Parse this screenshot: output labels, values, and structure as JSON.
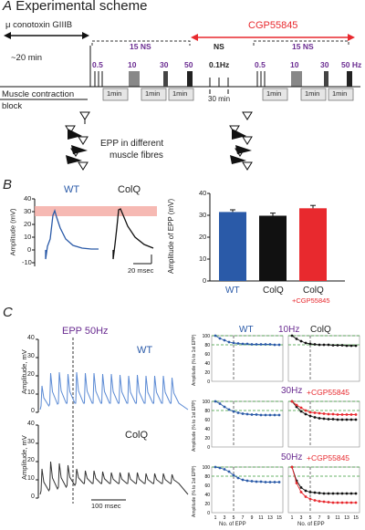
{
  "panelA": {
    "letter": "A",
    "title": "Experimental scheme",
    "conotoxin": "μ conotoxin GIIIB",
    "time20": "~20 min",
    "cgp": "CGP55845",
    "ns_left": "15 NS",
    "ns_mid": "NS",
    "ns_right": "15 NS",
    "freq_left": [
      "0.5",
      "10",
      "30",
      "50"
    ],
    "freq_mid": "0.1Hz",
    "freq_right": [
      "0.5",
      "10",
      "30",
      "50 Hz"
    ],
    "min_label": "1min",
    "min30": "30 min",
    "block_line1": "Muscle contraction",
    "block_line2": "block",
    "epp_line1": "EPP in different",
    "epp_line2": "muscle fibres",
    "colors": {
      "accent_purple": "#6a2c91",
      "red": "#e8292e",
      "blue": "#2a5aa8"
    }
  },
  "panelB": {
    "letter": "B",
    "wt": "WT",
    "colq": "ColQ",
    "ylabel": "Amplitude (mV)",
    "yticks": [
      "40",
      "30",
      "20",
      "10",
      "0",
      "-10"
    ],
    "scalebar": "20 msec",
    "bar_ylabel": "Amplitude of EPP (mV)",
    "bar_yticks": [
      "40",
      "30",
      "20",
      "10",
      "0"
    ],
    "bar_xlabels": [
      "WT",
      "ColQ",
      "ColQ"
    ],
    "bar_xsub": "+CGP55845"
  },
  "panelC": {
    "letter": "C",
    "epp50": "EPP 50Hz",
    "wt": "WT",
    "colq": "ColQ",
    "ylabel": "Amplitude, mV",
    "yticks_top": [
      "40",
      "30",
      "20",
      "10",
      "0"
    ],
    "yticks_bot": [
      "40",
      "30",
      "20",
      "10",
      "0"
    ],
    "scalebar": "100 msec",
    "wt_legend": "WT",
    "colq_legend": "ColQ",
    "freq_labels": [
      "10Hz",
      "30Hz",
      "50Hz"
    ],
    "cgp": "+CGP55845",
    "small_ylabel": "Amplitude (% to 1st EPP)",
    "small_yticks": [
      "100",
      "80",
      "60",
      "40",
      "20",
      "0"
    ],
    "xticks": [
      "1",
      "3",
      "5",
      "7",
      "9",
      "11",
      "13",
      "15"
    ],
    "xlabel": "No. of EPP"
  },
  "chart_data": [
    {
      "type": "bar",
      "categories": [
        "WT",
        "ColQ",
        "ColQ +CGP55845"
      ],
      "values": [
        31.5,
        29.8,
        33.2
      ],
      "errors": [
        1.0,
        1.2,
        1.3
      ],
      "colors": [
        "#2a5aa8",
        "#111111",
        "#e8292e"
      ],
      "ylabel": "Amplitude of EPP (mV)",
      "ylim": [
        0,
        40
      ]
    },
    {
      "type": "line",
      "title": "10Hz",
      "x": [
        1,
        2,
        3,
        4,
        5,
        6,
        7,
        8,
        9,
        10,
        11,
        12,
        13,
        14,
        15
      ],
      "series": [
        {
          "name": "WT",
          "values": [
            100,
            94,
            90,
            86,
            84,
            83,
            82,
            82,
            81,
            81,
            81,
            81,
            81,
            80,
            80
          ]
        },
        {
          "name": "ColQ",
          "values": [
            100,
            93,
            88,
            84,
            82,
            81,
            80,
            80,
            80,
            79,
            79,
            79,
            78,
            78,
            78
          ]
        }
      ],
      "ylim": [
        0,
        100
      ]
    },
    {
      "type": "line",
      "title": "30Hz",
      "x": [
        1,
        2,
        3,
        4,
        5,
        6,
        7,
        8,
        9,
        10,
        11,
        12,
        13,
        14,
        15
      ],
      "series": [
        {
          "name": "WT",
          "values": [
            100,
            95,
            88,
            82,
            78,
            75,
            73,
            72,
            71,
            71,
            70,
            70,
            70,
            70,
            70
          ]
        },
        {
          "name": "ColQ",
          "values": [
            100,
            88,
            78,
            72,
            68,
            65,
            63,
            62,
            61,
            61,
            60,
            60,
            60,
            60,
            60
          ]
        },
        {
          "name": "+CGP55845",
          "values": [
            100,
            92,
            86,
            80,
            76,
            75,
            74,
            73,
            72,
            72,
            71,
            71,
            71,
            71,
            71
          ]
        }
      ],
      "ylim": [
        0,
        100
      ]
    },
    {
      "type": "line",
      "title": "50Hz",
      "x": [
        1,
        2,
        3,
        4,
        5,
        6,
        7,
        8,
        9,
        10,
        11,
        12,
        13,
        14,
        15
      ],
      "series": [
        {
          "name": "WT",
          "values": [
            100,
            98,
            95,
            90,
            82,
            76,
            72,
            70,
            69,
            68,
            68,
            67,
            67,
            67,
            67
          ]
        },
        {
          "name": "ColQ",
          "values": [
            100,
            70,
            55,
            48,
            45,
            44,
            43,
            42,
            42,
            42,
            42,
            42,
            42,
            42,
            42
          ]
        },
        {
          "name": "+CGP55845",
          "values": [
            100,
            65,
            45,
            35,
            30,
            27,
            25,
            24,
            23,
            22,
            22,
            22,
            22,
            22,
            22
          ]
        }
      ],
      "ylim": [
        0,
        100
      ]
    }
  ]
}
